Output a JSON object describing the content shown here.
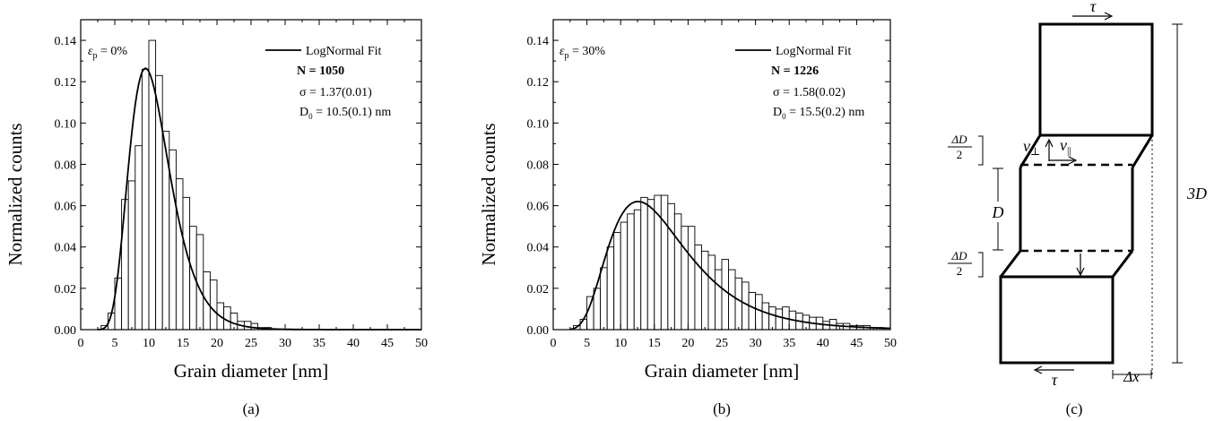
{
  "chart_data": [
    {
      "type": "bar",
      "panel": "(a)",
      "xlabel": "Grain diameter  [nm]",
      "ylabel": "Normalized counts",
      "xlim": [
        0,
        50
      ],
      "ylim": [
        0,
        0.15
      ],
      "xticks": [
        "0",
        "5",
        "10",
        "15",
        "20",
        "25",
        "30",
        "35",
        "40",
        "45",
        "50"
      ],
      "yticks": [
        "0.00",
        "0.02",
        "0.04",
        "0.06",
        "0.08",
        "0.10",
        "0.12",
        "0.14"
      ],
      "annotation": {
        "symbol": "ε",
        "sub": "p",
        "text": " = 0%"
      },
      "legend": {
        "fit_label": "LogNormal Fit",
        "n_text": "N = 1050",
        "sigma_text": "σ = 1.37(0.01)",
        "d0_prefix": "D",
        "d0_sub": "0",
        "d0_text": " = 10.5(0.1) nm"
      },
      "bin_width": 1,
      "bin_starts": [
        3,
        4,
        5,
        6,
        7,
        8,
        9,
        10,
        11,
        12,
        13,
        14,
        15,
        16,
        17,
        18,
        19,
        20,
        21,
        22,
        23,
        24,
        25,
        26,
        27
      ],
      "values": [
        0.002,
        0.008,
        0.025,
        0.063,
        0.072,
        0.089,
        0.126,
        0.14,
        0.123,
        0.096,
        0.087,
        0.073,
        0.064,
        0.05,
        0.046,
        0.028,
        0.024,
        0.013,
        0.011,
        0.008,
        0.004,
        0.004,
        0.003,
        0.001,
        0.001
      ],
      "fit": {
        "sigma": 1.37,
        "d0": 10.5,
        "peak": 0.1265,
        "label": "LogNormal Fit"
      }
    },
    {
      "type": "bar",
      "panel": "(b)",
      "xlabel": "Grain diameter  [nm]",
      "ylabel": "Normalized counts",
      "xlim": [
        0,
        50
      ],
      "ylim": [
        0,
        0.15
      ],
      "xticks": [
        "0",
        "5",
        "10",
        "15",
        "20",
        "25",
        "30",
        "35",
        "40",
        "45",
        "50"
      ],
      "yticks": [
        "0.00",
        "0.02",
        "0.04",
        "0.06",
        "0.08",
        "0.10",
        "0.12",
        "0.14"
      ],
      "annotation": {
        "symbol": "ε",
        "sub": "p",
        "text": " = 30%"
      },
      "legend": {
        "fit_label": "LogNormal Fit",
        "n_text": "N = 1226",
        "sigma_text": "σ = 1.58(0.02)",
        "d0_prefix": "D",
        "d0_sub": "0",
        "d0_text": " = 15.5(0.2) nm"
      },
      "bin_width": 1,
      "bin_starts": [
        3,
        4,
        5,
        6,
        7,
        8,
        9,
        10,
        11,
        12,
        13,
        14,
        15,
        16,
        17,
        18,
        19,
        20,
        21,
        22,
        23,
        24,
        25,
        26,
        27,
        28,
        29,
        30,
        31,
        32,
        33,
        34,
        35,
        36,
        37,
        38,
        39,
        40,
        41,
        42,
        43,
        44,
        45,
        46,
        47,
        48
      ],
      "values": [
        0.002,
        0.005,
        0.016,
        0.02,
        0.03,
        0.04,
        0.047,
        0.052,
        0.056,
        0.058,
        0.064,
        0.063,
        0.065,
        0.065,
        0.061,
        0.056,
        0.05,
        0.05,
        0.041,
        0.038,
        0.036,
        0.029,
        0.034,
        0.029,
        0.025,
        0.023,
        0.018,
        0.017,
        0.013,
        0.011,
        0.01,
        0.011,
        0.009,
        0.008,
        0.007,
        0.006,
        0.006,
        0.004,
        0.005,
        0.003,
        0.003,
        0.002,
        0.002,
        0.002,
        0.001,
        0.001
      ],
      "fit": {
        "sigma": 1.58,
        "d0": 15.5,
        "peak": 0.062,
        "label": "LogNormal Fit"
      }
    }
  ],
  "diagram": {
    "caption": "(c)",
    "tau_top": "τ",
    "tau_bottom": "τ",
    "v_perp": "v",
    "v_perp_sub": "⊥",
    "v_par": "v",
    "v_par_sub": "||",
    "delta_d_num": "ΔD",
    "delta_d_den": "2",
    "d_label": "D",
    "three_d_label": "3D",
    "delta_x_label": "Δx"
  }
}
